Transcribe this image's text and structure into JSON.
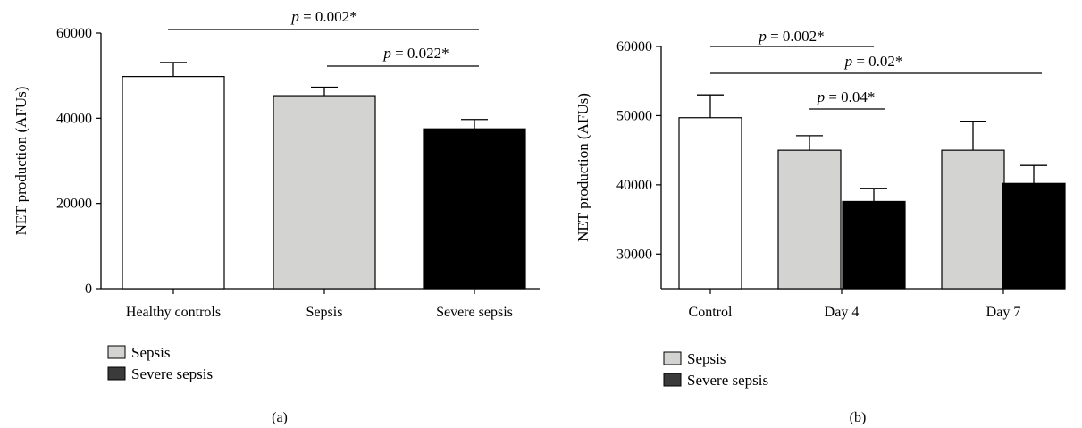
{
  "chart_data": [
    {
      "type": "bar",
      "panel_label": "(a)",
      "ylabel": "NET production (AFUs)",
      "ylim": [
        0,
        60000
      ],
      "yticks": [
        "0",
        "20000",
        "40000",
        "60000"
      ],
      "ytick_values": [
        0,
        20000,
        40000,
        60000
      ],
      "categories": [
        "Healthy controls",
        "Sepsis",
        "Severe sepsis"
      ],
      "bars": [
        {
          "category": "Healthy controls",
          "value": 49800,
          "error": 3300,
          "color": "#ffffff"
        },
        {
          "category": "Sepsis",
          "value": 45300,
          "error": 2000,
          "color": "#d3d3d1"
        },
        {
          "category": "Severe sepsis",
          "value": 37500,
          "error": 2200,
          "color": "#000000"
        }
      ],
      "annotations": [
        {
          "italic": "p",
          "rest": " = 0.002*",
          "from": 0,
          "to": 2,
          "y": 61000
        },
        {
          "italic": "p",
          "rest": " = 0.022*",
          "from": 1,
          "to": 2,
          "y": 52000
        }
      ],
      "legend": [
        {
          "label": "Sepsis",
          "color": "#d3d3d1"
        },
        {
          "label": "Severe sepsis",
          "color": "#3a3a3a"
        }
      ]
    },
    {
      "type": "bar",
      "panel_label": "(b)",
      "ylabel": "NET production (AFUs)",
      "ylim": [
        25000,
        60000
      ],
      "yticks": [
        "30000",
        "40000",
        "50000",
        "60000"
      ],
      "ytick_values": [
        30000,
        40000,
        50000,
        60000
      ],
      "categories": [
        "Control",
        "Day 4",
        "Day 7"
      ],
      "series": [
        {
          "name": "Control",
          "color": "#ffffff",
          "values": [
            49700,
            null,
            null
          ],
          "errors": [
            3300,
            null,
            null
          ]
        },
        {
          "name": "Sepsis",
          "color": "#d3d3d1",
          "values": [
            null,
            45000,
            45000
          ],
          "errors": [
            null,
            2100,
            4200
          ]
        },
        {
          "name": "Severe sepsis",
          "color": "#000000",
          "values": [
            null,
            37600,
            40200
          ],
          "errors": [
            null,
            1900,
            2600
          ]
        }
      ],
      "annotations": [
        {
          "italic": "p",
          "rest": " = 0.002*",
          "y": 58000,
          "span": "control-to-day4-sepsis"
        },
        {
          "italic": "p",
          "rest": " = 0.02*",
          "y": 55200,
          "span": "control-to-day7"
        },
        {
          "italic": "p",
          "rest": " = 0.04*",
          "y": 51200,
          "span": "day4-sepsis-to-severe"
        }
      ],
      "legend": [
        {
          "label": "Sepsis",
          "color": "#d3d3d1"
        },
        {
          "label": "Severe sepsis",
          "color": "#3a3a3a"
        }
      ]
    }
  ]
}
